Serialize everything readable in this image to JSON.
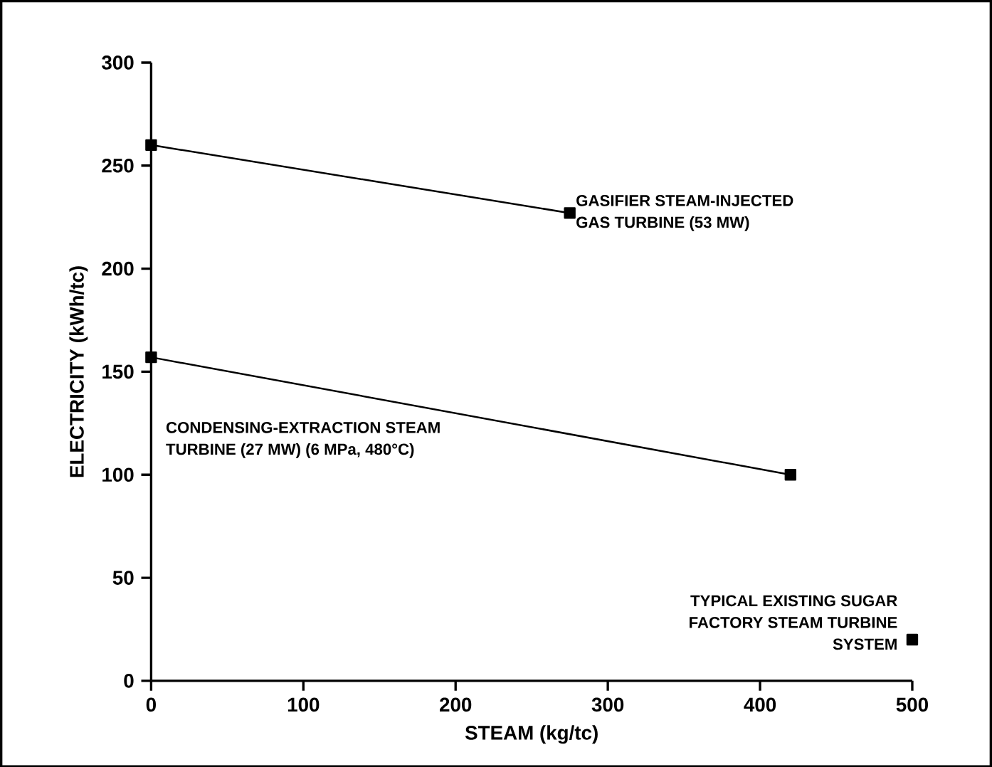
{
  "chart_data": {
    "type": "line",
    "xlabel": "STEAM (kg/tc)",
    "ylabel": "ELECTRICITY (kWh/tc)",
    "xlim": [
      0,
      500
    ],
    "ylim": [
      0,
      300
    ],
    "xticks": [
      0,
      100,
      200,
      300,
      400,
      500
    ],
    "yticks": [
      0,
      50,
      100,
      150,
      200,
      250,
      300
    ],
    "marker": "square",
    "line_style": "solid",
    "grid": false,
    "legend": false,
    "series": [
      {
        "name": "GASIFIER STEAM-INJECTED GAS TURBINE (53 MW)",
        "color": "#000000",
        "x": [
          0,
          275
        ],
        "values": [
          260,
          227
        ]
      },
      {
        "name": "CONDENSING-EXTRACTION STEAM TURBINE (27 MW) (6 MPa, 480°C)",
        "color": "#000000",
        "x": [
          0,
          420
        ],
        "values": [
          157,
          100
        ]
      },
      {
        "name": "TYPICAL EXISTING SUGAR FACTORY STEAM TURBINE SYSTEM",
        "type": "scatter",
        "color": "#000000",
        "x": [
          500
        ],
        "values": [
          20
        ]
      }
    ]
  }
}
